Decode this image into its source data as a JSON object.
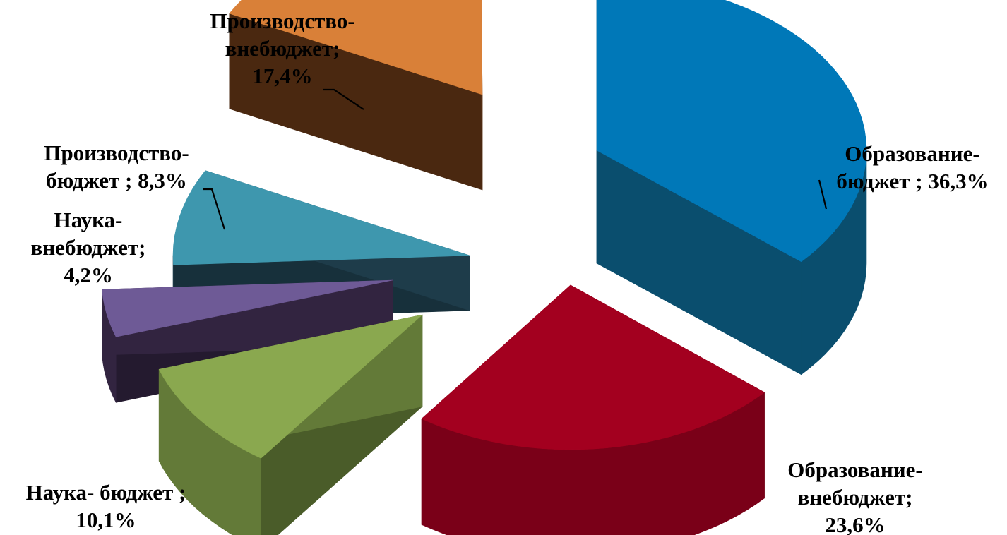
{
  "chart_data": {
    "type": "pie",
    "style": "3d exploded",
    "legend": "none",
    "slices": [
      {
        "label_lines": [
          "Образование-",
          "бюджет ; 36,3%"
        ],
        "value": 36.3,
        "color": "#0078B8",
        "side_color": "#0A4E6E",
        "inner_color": "#07354D"
      },
      {
        "label_lines": [
          "Образование-",
          "внебюджет;",
          "23,6%"
        ],
        "value": 23.6,
        "color": "#A3001F",
        "side_color": "#7A0018",
        "inner_color": "#4D000F"
      },
      {
        "label_lines": [
          "Наука- бюджет ;",
          "10,1%"
        ],
        "value": 10.1,
        "color": "#8AA84F",
        "side_color": "#637A38",
        "inner_color": "#4A5C29"
      },
      {
        "label_lines": [
          "Наука-",
          "внебюджет;",
          "4,2%"
        ],
        "value": 4.2,
        "color": "#6E5A96",
        "side_color": "#322440",
        "inner_color": "#241A2F"
      },
      {
        "label_lines": [
          "Производство-",
          "бюджет ; 8,3%"
        ],
        "value": 8.3,
        "color": "#3E97AE",
        "side_color": "#1E3C4A",
        "inner_color": "#17303B"
      },
      {
        "label_lines": [
          "Производство-",
          "внебюджет;",
          "17,4%"
        ],
        "value": 17.4,
        "color": "#D98038",
        "side_color": "#5E3416",
        "inner_color": "#4A2810"
      }
    ]
  }
}
